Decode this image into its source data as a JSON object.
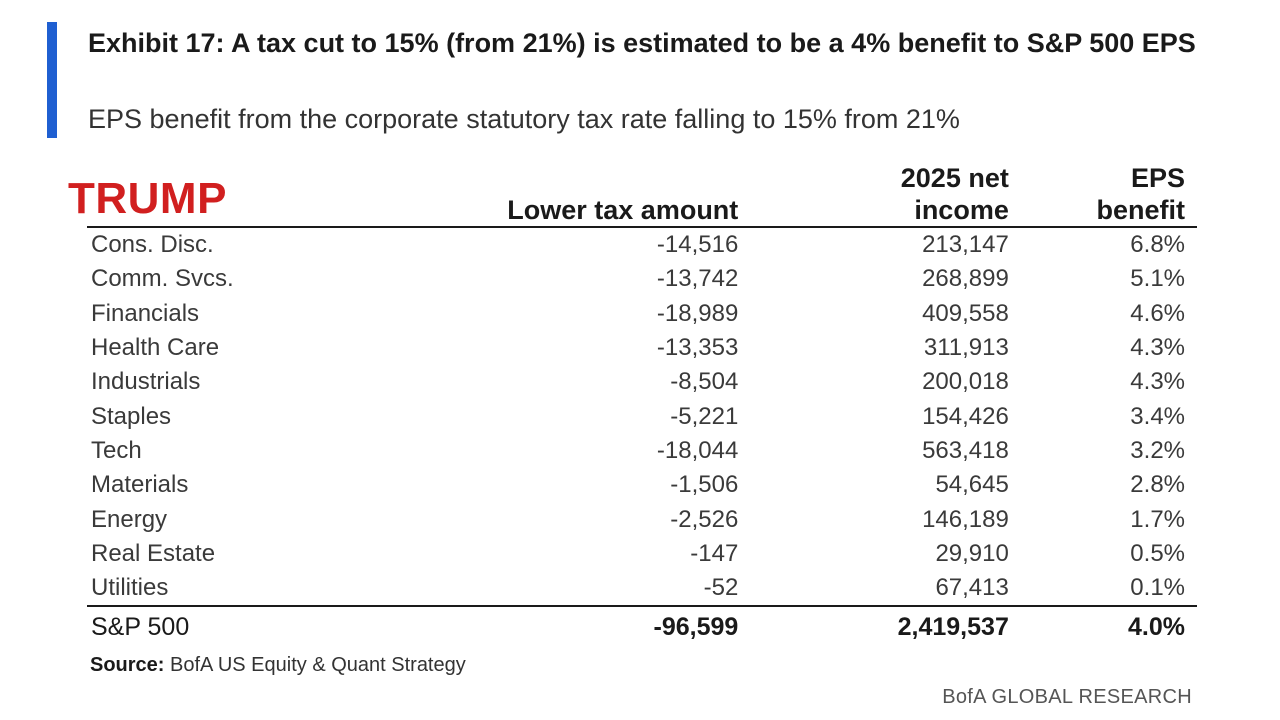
{
  "header": {
    "title": "Exhibit 17: A tax cut to 15% (from 21%) is estimated to be a 4% benefit to S&P 500 EPS",
    "subtitle": "EPS benefit from the corporate statutory tax rate falling to 15% from 21%",
    "watermark": "TRUMP",
    "accent_color": "#1f5fd1",
    "watermark_color": "#d11f1f"
  },
  "chart_data": {
    "type": "table",
    "title": "Exhibit 17: A tax cut to 15% (from 21%) is estimated to be a 4% benefit to S&P 500 EPS",
    "subtitle": "EPS benefit from the corporate statutory tax rate falling to 15% from 21%",
    "columns": [
      "",
      "Lower tax amount",
      "2025 net income",
      "EPS benefit"
    ],
    "rows": [
      {
        "sector": "Cons. Disc.",
        "lower_tax": "-14,516",
        "net_income": "213,147",
        "eps_benefit": "6.8%"
      },
      {
        "sector": "Comm. Svcs.",
        "lower_tax": "-13,742",
        "net_income": "268,899",
        "eps_benefit": "5.1%"
      },
      {
        "sector": "Financials",
        "lower_tax": "-18,989",
        "net_income": "409,558",
        "eps_benefit": "4.6%"
      },
      {
        "sector": "Health Care",
        "lower_tax": "-13,353",
        "net_income": "311,913",
        "eps_benefit": "4.3%"
      },
      {
        "sector": "Industrials",
        "lower_tax": "-8,504",
        "net_income": "200,018",
        "eps_benefit": "4.3%"
      },
      {
        "sector": "Staples",
        "lower_tax": "-5,221",
        "net_income": "154,426",
        "eps_benefit": "3.4%"
      },
      {
        "sector": "Tech",
        "lower_tax": "-18,044",
        "net_income": "563,418",
        "eps_benefit": "3.2%"
      },
      {
        "sector": "Materials",
        "lower_tax": "-1,506",
        "net_income": "54,645",
        "eps_benefit": "2.8%"
      },
      {
        "sector": "Energy",
        "lower_tax": "-2,526",
        "net_income": "146,189",
        "eps_benefit": "1.7%"
      },
      {
        "sector": "Real Estate",
        "lower_tax": "-147",
        "net_income": "29,910",
        "eps_benefit": "0.5%"
      },
      {
        "sector": "Utilities",
        "lower_tax": "-52",
        "net_income": "67,413",
        "eps_benefit": "0.1%"
      }
    ],
    "total": {
      "sector": "S&P 500",
      "lower_tax": "-96,599",
      "net_income": "2,419,537",
      "eps_benefit": "4.0%"
    }
  },
  "table_headers": {
    "lower_tax": "Lower tax amount",
    "net_income_line1": "2025 net",
    "net_income_line2": "income",
    "eps_line1": "EPS",
    "eps_line2": "benefit"
  },
  "footer": {
    "source_label": "Source:",
    "source_text": " BofA US Equity & Quant Strategy",
    "brand": "BofA GLOBAL RESEARCH"
  }
}
